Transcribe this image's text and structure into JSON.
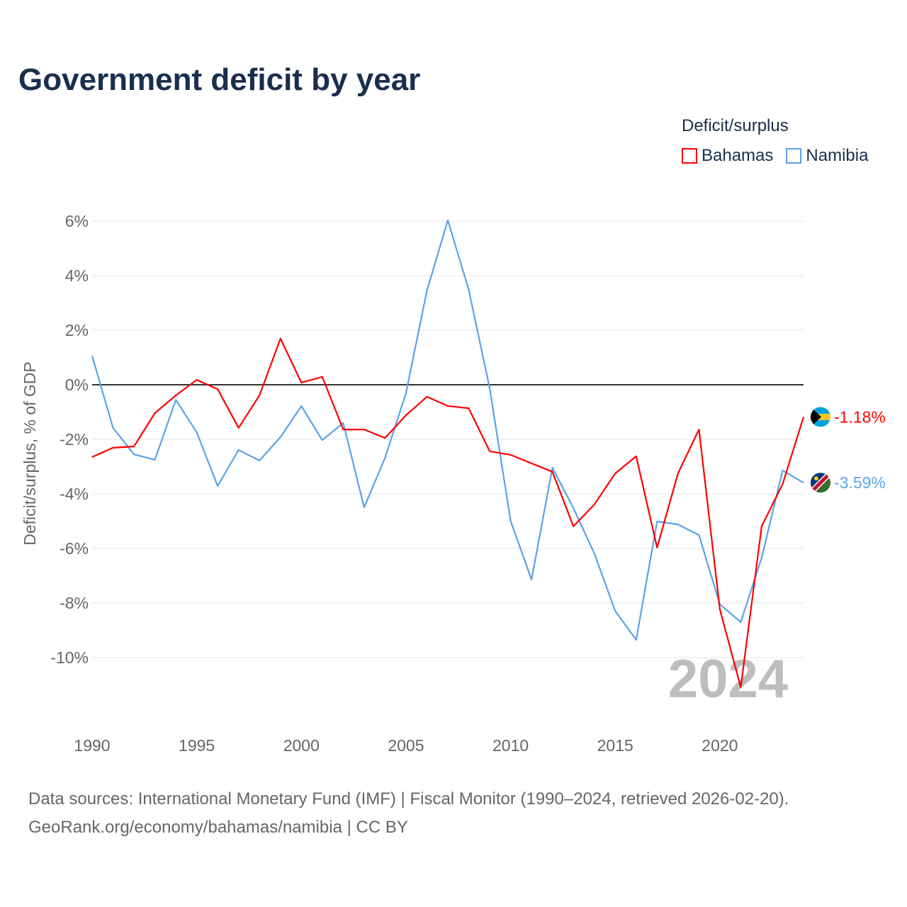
{
  "title": "Government deficit by year",
  "legend": {
    "title": "Deficit/surplus",
    "items": [
      {
        "name": "Bahamas",
        "color": "#ff0000"
      },
      {
        "name": "Namibia",
        "color": "#5ba3e8"
      }
    ]
  },
  "watermark_year": "2024",
  "source_line1": "Data sources: International Monetary Fund (IMF) | Fiscal Monitor (1990–2024, retrieved 2026-02-20).",
  "source_line2": "GeoRank.org/economy/bahamas/namibia | CC BY",
  "chart_data": {
    "type": "line",
    "title": "Government deficit by year",
    "xlabel": "",
    "ylabel": "Deficit/surplus, % of GDP",
    "xlim": [
      1990,
      2024
    ],
    "ylim": [
      -12,
      6.5
    ],
    "x_ticks": [
      1990,
      1995,
      2000,
      2005,
      2010,
      2015,
      2020
    ],
    "x_tick_labels": [
      "1990",
      "1995",
      "2000",
      "2005",
      "2010",
      "2015",
      "2020"
    ],
    "y_ticks": [
      6,
      4,
      2,
      0,
      -2,
      -4,
      -6,
      -8,
      -10
    ],
    "y_tick_labels": [
      "6%",
      "4%",
      "2%",
      "0%",
      "-2%",
      "-4%",
      "-6%",
      "-8%",
      "-10%"
    ],
    "grid": true,
    "legend_position": "top-right",
    "x": [
      1990,
      1991,
      1992,
      1993,
      1994,
      1995,
      1996,
      1997,
      1998,
      1999,
      2000,
      2001,
      2002,
      2003,
      2004,
      2005,
      2006,
      2007,
      2008,
      2009,
      2010,
      2011,
      2012,
      2013,
      2014,
      2015,
      2016,
      2017,
      2018,
      2019,
      2020,
      2021,
      2022,
      2023,
      2024
    ],
    "series": [
      {
        "name": "Bahamas",
        "color": "#ff0000",
        "end_label": "-1.18%",
        "values": [
          -2.65,
          -2.31,
          -2.26,
          -1.04,
          -0.39,
          0.18,
          -0.16,
          -1.58,
          -0.39,
          1.69,
          0.08,
          0.29,
          -1.64,
          -1.64,
          -1.95,
          -1.12,
          -0.44,
          -0.78,
          -0.86,
          -2.44,
          -2.57,
          -2.88,
          -3.19,
          -5.19,
          -4.39,
          -3.25,
          -2.62,
          -5.97,
          -3.25,
          -1.64,
          -8.23,
          -11.09,
          -5.19,
          -3.64,
          -1.18
        ]
      },
      {
        "name": "Namibia",
        "color": "#5ba3e8",
        "end_label": "-3.59%",
        "values": [
          1.06,
          -1.58,
          -2.55,
          -2.75,
          -0.55,
          -1.74,
          -3.71,
          -2.39,
          -2.78,
          -1.92,
          -0.78,
          -2.03,
          -1.4,
          -4.49,
          -2.68,
          -0.31,
          3.45,
          6.03,
          3.48,
          -0.13,
          -4.99,
          -7.14,
          -3.04,
          -4.52,
          -6.18,
          -8.29,
          -9.35,
          -5.01,
          -5.12,
          -5.51,
          -8.05,
          -8.7,
          -6.34,
          -3.14,
          -3.59
        ]
      }
    ]
  }
}
